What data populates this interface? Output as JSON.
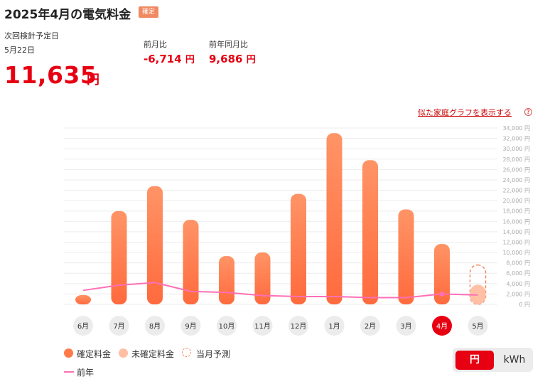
{
  "header": {
    "title": "2025年4月の電気料金",
    "badge": "確定",
    "next_reading_label": "次回検針予定日",
    "next_reading_date": "5月22日",
    "amount": "11,635",
    "amount_unit": "円",
    "mom_label": "前月比",
    "mom_value": "-6,714",
    "yoy_label": "前年同月比",
    "yoy_value": "9,686",
    "value_unit": "円"
  },
  "similar_link": "似た家庭グラフを表示する",
  "help_icon": "question-circle-icon",
  "colors": {
    "accent": "#e60012",
    "bar_top": "#ff9466",
    "bar_bottom": "#ff6a3d",
    "pending": "#ffc0a6",
    "prev_year": "#ff6fb5"
  },
  "chart_data": {
    "type": "bar",
    "categories": [
      "6月",
      "7月",
      "8月",
      "9月",
      "10月",
      "11月",
      "12月",
      "1月",
      "2月",
      "3月",
      "4月",
      "5月"
    ],
    "series": [
      {
        "name": "確定料金",
        "values": [
          1800,
          18000,
          22800,
          16300,
          9300,
          10000,
          21300,
          33000,
          27800,
          18300,
          11635,
          null
        ]
      },
      {
        "name": "未確定料金",
        "values": [
          null,
          null,
          null,
          null,
          null,
          null,
          null,
          null,
          null,
          null,
          null,
          3800
        ]
      },
      {
        "name": "当月予測",
        "values": [
          null,
          null,
          null,
          null,
          null,
          null,
          null,
          null,
          null,
          null,
          null,
          7600
        ]
      },
      {
        "name": "前年",
        "values": [
          2700,
          3700,
          4200,
          2500,
          2300,
          1700,
          1500,
          1500,
          1300,
          1300,
          2000,
          1800
        ]
      }
    ],
    "y_ticks": [
      "34,000 円",
      "32,000 円",
      "30,000 円",
      "28,000 円",
      "26,000 円",
      "24,000 円",
      "22,000 円",
      "20,000 円",
      "18,000 円",
      "16,000 円",
      "14,000 円",
      "12,000 円",
      "10,000 円",
      "8,000 円",
      "6,000 円",
      "4,000 円",
      "2,000 円",
      "0 円"
    ],
    "ylim": [
      0,
      34000
    ],
    "selected_category": "4月",
    "grid": true,
    "legend": [
      "確定料金",
      "未確定料金",
      "当月予測",
      "前年"
    ],
    "legend_position": "bottom-left"
  },
  "unit_toggle": {
    "yen": "円",
    "kwh": "kWh",
    "selected": "円"
  }
}
